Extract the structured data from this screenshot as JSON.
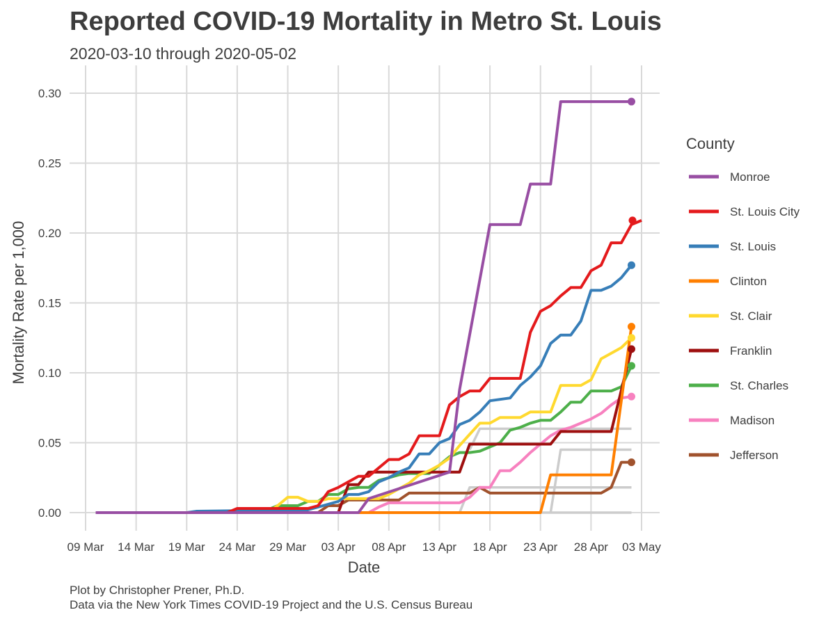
{
  "title": "Reported COVID-19 Mortality in Metro St. Louis",
  "subtitle": "2020-03-10 through 2020-05-02",
  "caption_line1": "Plot by Christopher Prener, Ph.D.",
  "caption_line2": "Data via the New York Times COVID-19 Project and the U.S. Census Bureau",
  "chart_data": {
    "type": "line",
    "xlabel": "Date",
    "ylabel": "Mortality Rate per 1,000",
    "x_range": [
      "2020-03-09",
      "2020-05-03"
    ],
    "ylim": [
      -0.013,
      0.313
    ],
    "x_ticks": [
      {
        "date": "2020-03-09",
        "label": "09 Mar"
      },
      {
        "date": "2020-03-14",
        "label": "14 Mar"
      },
      {
        "date": "2020-03-19",
        "label": "19 Mar"
      },
      {
        "date": "2020-03-24",
        "label": "24 Mar"
      },
      {
        "date": "2020-03-29",
        "label": "29 Mar"
      },
      {
        "date": "2020-04-03",
        "label": "03 Apr"
      },
      {
        "date": "2020-04-08",
        "label": "08 Apr"
      },
      {
        "date": "2020-04-13",
        "label": "13 Apr"
      },
      {
        "date": "2020-04-18",
        "label": "18 Apr"
      },
      {
        "date": "2020-04-23",
        "label": "23 Apr"
      },
      {
        "date": "2020-04-28",
        "label": "28 Apr"
      },
      {
        "date": "2020-05-03",
        "label": "03 May"
      }
    ],
    "y_ticks": [
      {
        "value": 0,
        "label": "0.00"
      },
      {
        "value": 0.05,
        "label": "0.05"
      },
      {
        "value": 0.1,
        "label": "0.10"
      },
      {
        "value": 0.15,
        "label": "0.15"
      },
      {
        "value": 0.2,
        "label": "0.20"
      },
      {
        "value": 0.25,
        "label": "0.25"
      },
      {
        "value": 0.3,
        "label": "0.30"
      }
    ],
    "grid": true,
    "legend": {
      "title": "County",
      "position": "right"
    },
    "background_series_color": "#cccccc",
    "series": [
      {
        "name": "Monroe",
        "color": "#984ea3",
        "points": [
          [
            "2020-03-10",
            0
          ],
          [
            "2020-04-05",
            0
          ],
          [
            "2020-04-06",
            0.01
          ],
          [
            "2020-04-14",
            0.029
          ],
          [
            "2020-04-15",
            0.088
          ],
          [
            "2020-04-18",
            0.206
          ],
          [
            "2020-04-21",
            0.206
          ],
          [
            "2020-04-22",
            0.235
          ],
          [
            "2020-04-24",
            0.235
          ],
          [
            "2020-04-25",
            0.294
          ],
          [
            "2020-05-02",
            0.294
          ]
        ]
      },
      {
        "name": "St. Louis City",
        "color": "#e41a1c",
        "points": [
          [
            "2020-03-10",
            0
          ],
          [
            "2020-03-23",
            0
          ],
          [
            "2020-03-24",
            0.003
          ],
          [
            "2020-03-31",
            0.003
          ],
          [
            "2020-04-01",
            0.005
          ],
          [
            "2020-04-02",
            0.015
          ],
          [
            "2020-04-03",
            0.018
          ],
          [
            "2020-04-04",
            0.022
          ],
          [
            "2020-04-05",
            0.026
          ],
          [
            "2020-04-06",
            0.026
          ],
          [
            "2020-04-07",
            0.032
          ],
          [
            "2020-04-08",
            0.038
          ],
          [
            "2020-04-09",
            0.038
          ],
          [
            "2020-04-10",
            0.042
          ],
          [
            "2020-04-11",
            0.055
          ],
          [
            "2020-04-13",
            0.055
          ],
          [
            "2020-04-14",
            0.077
          ],
          [
            "2020-04-15",
            0.083
          ],
          [
            "2020-04-16",
            0.087
          ],
          [
            "2020-04-17",
            0.087
          ],
          [
            "2020-04-18",
            0.096
          ],
          [
            "2020-04-21",
            0.096
          ],
          [
            "2020-04-22",
            0.129
          ],
          [
            "2020-04-23",
            0.144
          ],
          [
            "2020-04-24",
            0.148
          ],
          [
            "2020-04-25",
            0.155
          ],
          [
            "2020-04-26",
            0.161
          ],
          [
            "2020-04-27",
            0.161
          ],
          [
            "2020-04-28",
            0.173
          ],
          [
            "2020-04-29",
            0.177
          ],
          [
            "2020-04-30",
            0.193
          ],
          [
            "2020-05-01",
            0.193
          ],
          [
            "2020-05-02",
            0.206
          ],
          [
            "2020-05-03",
            0.209
          ]
        ]
      },
      {
        "name": "St. Louis",
        "color": "#377eb8",
        "points": [
          [
            "2020-03-10",
            0
          ],
          [
            "2020-03-19",
            0
          ],
          [
            "2020-03-20",
            0.001
          ],
          [
            "2020-03-31",
            0.002
          ],
          [
            "2020-04-01",
            0.004
          ],
          [
            "2020-04-03",
            0.008
          ],
          [
            "2020-04-04",
            0.013
          ],
          [
            "2020-04-05",
            0.013
          ],
          [
            "2020-04-06",
            0.015
          ],
          [
            "2020-04-07",
            0.022
          ],
          [
            "2020-04-08",
            0.025
          ],
          [
            "2020-04-09",
            0.029
          ],
          [
            "2020-04-10",
            0.032
          ],
          [
            "2020-04-11",
            0.042
          ],
          [
            "2020-04-12",
            0.042
          ],
          [
            "2020-04-13",
            0.05
          ],
          [
            "2020-04-14",
            0.053
          ],
          [
            "2020-04-15",
            0.063
          ],
          [
            "2020-04-16",
            0.066
          ],
          [
            "2020-04-17",
            0.072
          ],
          [
            "2020-04-18",
            0.08
          ],
          [
            "2020-04-19",
            0.081
          ],
          [
            "2020-04-20",
            0.082
          ],
          [
            "2020-04-21",
            0.091
          ],
          [
            "2020-04-22",
            0.097
          ],
          [
            "2020-04-23",
            0.105
          ],
          [
            "2020-04-24",
            0.121
          ],
          [
            "2020-04-25",
            0.127
          ],
          [
            "2020-04-26",
            0.127
          ],
          [
            "2020-04-27",
            0.137
          ],
          [
            "2020-04-28",
            0.159
          ],
          [
            "2020-04-29",
            0.159
          ],
          [
            "2020-04-30",
            0.162
          ],
          [
            "2020-05-01",
            0.168
          ],
          [
            "2020-05-02",
            0.177
          ]
        ]
      },
      {
        "name": "Clinton",
        "color": "#ff7f00",
        "points": [
          [
            "2020-03-10",
            0
          ],
          [
            "2020-04-23",
            0
          ],
          [
            "2020-04-24",
            0.027
          ],
          [
            "2020-04-30",
            0.027
          ],
          [
            "2020-05-01",
            0.08
          ],
          [
            "2020-05-02",
            0.133
          ]
        ]
      },
      {
        "name": "St. Clair",
        "color": "#ffd92f",
        "points": [
          [
            "2020-03-10",
            0
          ],
          [
            "2020-03-27",
            0
          ],
          [
            "2020-03-28",
            0.005
          ],
          [
            "2020-03-29",
            0.011
          ],
          [
            "2020-03-30",
            0.011
          ],
          [
            "2020-03-31",
            0.008
          ],
          [
            "2020-04-01",
            0.008
          ],
          [
            "2020-04-02",
            0.01
          ],
          [
            "2020-04-06",
            0.01
          ],
          [
            "2020-04-07",
            0.01
          ],
          [
            "2020-04-08",
            0.013
          ],
          [
            "2020-04-09",
            0.017
          ],
          [
            "2020-04-10",
            0.021
          ],
          [
            "2020-04-11",
            0.027
          ],
          [
            "2020-04-12",
            0.03
          ],
          [
            "2020-04-13",
            0.034
          ],
          [
            "2020-04-14",
            0.039
          ],
          [
            "2020-04-15",
            0.048
          ],
          [
            "2020-04-16",
            0.056
          ],
          [
            "2020-04-17",
            0.064
          ],
          [
            "2020-04-18",
            0.064
          ],
          [
            "2020-04-19",
            0.068
          ],
          [
            "2020-04-21",
            0.068
          ],
          [
            "2020-04-22",
            0.072
          ],
          [
            "2020-04-24",
            0.072
          ],
          [
            "2020-04-25",
            0.091
          ],
          [
            "2020-04-27",
            0.091
          ],
          [
            "2020-04-28",
            0.095
          ],
          [
            "2020-04-29",
            0.11
          ],
          [
            "2020-04-30",
            0.114
          ],
          [
            "2020-05-01",
            0.118
          ],
          [
            "2020-05-02",
            0.125
          ]
        ]
      },
      {
        "name": "Franklin",
        "color": "#9e0f0f",
        "points": [
          [
            "2020-03-10",
            0
          ],
          [
            "2020-04-03",
            0
          ],
          [
            "2020-04-04",
            0.02
          ],
          [
            "2020-04-05",
            0.02
          ],
          [
            "2020-04-06",
            0.029
          ],
          [
            "2020-04-15",
            0.029
          ],
          [
            "2020-04-16",
            0.049
          ],
          [
            "2020-04-24",
            0.049
          ],
          [
            "2020-04-25",
            0.058
          ],
          [
            "2020-04-29",
            0.058
          ],
          [
            "2020-04-30",
            0.058
          ],
          [
            "2020-05-02",
            0.117
          ]
        ]
      },
      {
        "name": "St. Charles",
        "color": "#4daf4a",
        "points": [
          [
            "2020-03-10",
            0
          ],
          [
            "2020-03-24",
            0
          ],
          [
            "2020-03-25",
            0.002
          ],
          [
            "2020-03-27",
            0.002
          ],
          [
            "2020-03-28",
            0.005
          ],
          [
            "2020-03-29",
            0.005
          ],
          [
            "2020-03-30",
            0.005
          ],
          [
            "2020-03-31",
            0.008
          ],
          [
            "2020-04-01",
            0.008
          ],
          [
            "2020-04-02",
            0.013
          ],
          [
            "2020-04-03",
            0.013
          ],
          [
            "2020-04-04",
            0.017
          ],
          [
            "2020-04-05",
            0.018
          ],
          [
            "2020-04-06",
            0.018
          ],
          [
            "2020-04-07",
            0.023
          ],
          [
            "2020-04-08",
            0.025
          ],
          [
            "2020-04-09",
            0.027
          ],
          [
            "2020-04-10",
            0.028
          ],
          [
            "2020-04-11",
            0.028
          ],
          [
            "2020-04-12",
            0.028
          ],
          [
            "2020-04-13",
            0.034
          ],
          [
            "2020-04-14",
            0.04
          ],
          [
            "2020-04-15",
            0.043
          ],
          [
            "2020-04-16",
            0.043
          ],
          [
            "2020-04-17",
            0.044
          ],
          [
            "2020-04-18",
            0.047
          ],
          [
            "2020-04-19",
            0.05
          ],
          [
            "2020-04-20",
            0.059
          ],
          [
            "2020-04-21",
            0.061
          ],
          [
            "2020-04-22",
            0.064
          ],
          [
            "2020-04-23",
            0.066
          ],
          [
            "2020-04-24",
            0.066
          ],
          [
            "2020-04-25",
            0.072
          ],
          [
            "2020-04-26",
            0.079
          ],
          [
            "2020-04-27",
            0.079
          ],
          [
            "2020-04-28",
            0.087
          ],
          [
            "2020-04-30",
            0.087
          ],
          [
            "2020-05-01",
            0.09
          ],
          [
            "2020-05-02",
            0.105
          ]
        ]
      },
      {
        "name": "Madison",
        "color": "#f781bf",
        "points": [
          [
            "2020-03-10",
            0
          ],
          [
            "2020-04-06",
            0
          ],
          [
            "2020-04-07",
            0.004
          ],
          [
            "2020-04-08",
            0.007
          ],
          [
            "2020-04-14",
            0.007
          ],
          [
            "2020-04-15",
            0.007
          ],
          [
            "2020-04-16",
            0.011
          ],
          [
            "2020-04-17",
            0.018
          ],
          [
            "2020-04-18",
            0.018
          ],
          [
            "2020-04-19",
            0.03
          ],
          [
            "2020-04-20",
            0.03
          ],
          [
            "2020-04-21",
            0.036
          ],
          [
            "2020-04-22",
            0.043
          ],
          [
            "2020-04-23",
            0.049
          ],
          [
            "2020-04-24",
            0.055
          ],
          [
            "2020-04-25",
            0.059
          ],
          [
            "2020-04-26",
            0.061
          ],
          [
            "2020-04-27",
            0.064
          ],
          [
            "2020-04-28",
            0.067
          ],
          [
            "2020-04-29",
            0.071
          ],
          [
            "2020-04-30",
            0.077
          ],
          [
            "2020-05-01",
            0.082
          ],
          [
            "2020-05-02",
            0.083
          ]
        ]
      },
      {
        "name": "Jefferson",
        "color": "#a0522d",
        "points": [
          [
            "2020-03-10",
            0
          ],
          [
            "2020-04-01",
            0
          ],
          [
            "2020-04-02",
            0.005
          ],
          [
            "2020-04-03",
            0.005
          ],
          [
            "2020-04-04",
            0.009
          ],
          [
            "2020-04-09",
            0.009
          ],
          [
            "2020-04-10",
            0.014
          ],
          [
            "2020-04-16",
            0.014
          ],
          [
            "2020-04-17",
            0.018
          ],
          [
            "2020-04-18",
            0.014
          ],
          [
            "2020-04-29",
            0.014
          ],
          [
            "2020-04-30",
            0.018
          ],
          [
            "2020-05-01",
            0.036
          ],
          [
            "2020-05-02",
            0.036
          ]
        ]
      }
    ],
    "background_series": [
      {
        "points": [
          [
            "2020-04-15",
            0
          ],
          [
            "2020-04-16",
            0.018
          ],
          [
            "2020-05-02",
            0.018
          ]
        ]
      },
      {
        "points": [
          [
            "2020-04-16",
            0.045
          ],
          [
            "2020-04-17",
            0.06
          ],
          [
            "2020-05-02",
            0.06
          ]
        ]
      },
      {
        "points": [
          [
            "2020-04-24",
            0
          ],
          [
            "2020-04-25",
            0.045
          ],
          [
            "2020-05-02",
            0.045
          ]
        ]
      },
      {
        "points": [
          [
            "2020-04-15",
            0
          ],
          [
            "2020-05-02",
            0
          ]
        ]
      }
    ]
  }
}
